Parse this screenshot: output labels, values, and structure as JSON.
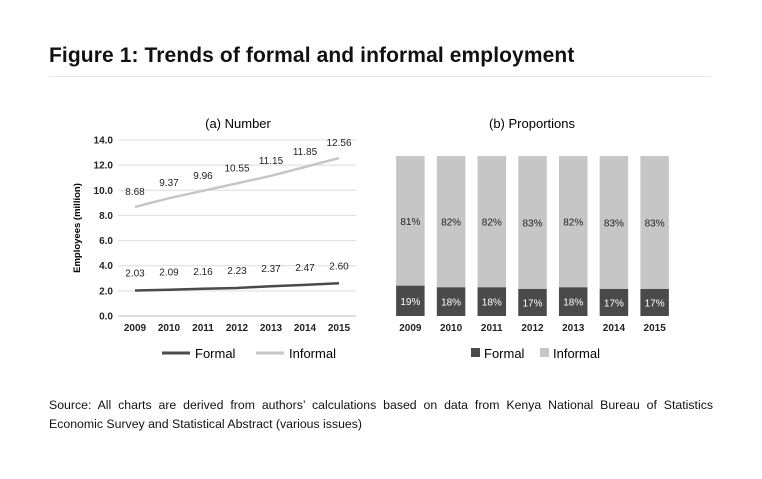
{
  "figure_title": "Figure 1: Trends of formal and informal employment",
  "source_note": "Source: All charts are derived from authors’ calculations based on data from Kenya National Bureau of Statistics Economic Survey and Statistical Abstract (various issues)",
  "colors": {
    "formal": "#4a4a4a",
    "informal": "#c6c6c6",
    "grid": "#dcdcdc",
    "text": "#222222"
  },
  "chart_data": [
    {
      "type": "line",
      "title": "(a) Number",
      "xlabel": "",
      "ylabel": "Employees (million)",
      "x": [
        "2009",
        "2010",
        "2011",
        "2012",
        "2013",
        "2014",
        "2015"
      ],
      "ylim": [
        0,
        14
      ],
      "yticks": [
        "0.0",
        "2.0",
        "4.0",
        "6.0",
        "8.0",
        "10.0",
        "12.0",
        "14.0"
      ],
      "grid": true,
      "legend": "bottom",
      "series": [
        {
          "name": "Formal",
          "values": [
            2.03,
            2.09,
            2.16,
            2.23,
            2.37,
            2.47,
            2.6
          ],
          "labels": [
            "2.03",
            "2.09",
            "2.16",
            "2.23",
            "2.37",
            "2.47",
            "2.60"
          ]
        },
        {
          "name": "Informal",
          "values": [
            8.68,
            9.37,
            9.96,
            10.55,
            11.15,
            11.85,
            12.56
          ],
          "labels": [
            "8.68",
            "9.37",
            "9.96",
            "10.55",
            "11.15",
            "11.85",
            "12.56"
          ]
        }
      ]
    },
    {
      "type": "bar",
      "stacked": true,
      "title": "(b) Proportions",
      "xlabel": "",
      "ylabel": "",
      "categories": [
        "2009",
        "2010",
        "2011",
        "2012",
        "2013",
        "2014",
        "2015"
      ],
      "ylim": [
        0,
        100
      ],
      "legend": "bottom",
      "series": [
        {
          "name": "Formal",
          "values": [
            19,
            18,
            18,
            17,
            18,
            17,
            17
          ],
          "labels": [
            "19%",
            "18%",
            "18%",
            "17%",
            "18%",
            "17%",
            "17%"
          ]
        },
        {
          "name": "Informal",
          "values": [
            81,
            82,
            82,
            83,
            82,
            83,
            83
          ],
          "labels": [
            "81%",
            "82%",
            "82%",
            "83%",
            "82%",
            "83%",
            "83%"
          ]
        }
      ]
    }
  ]
}
